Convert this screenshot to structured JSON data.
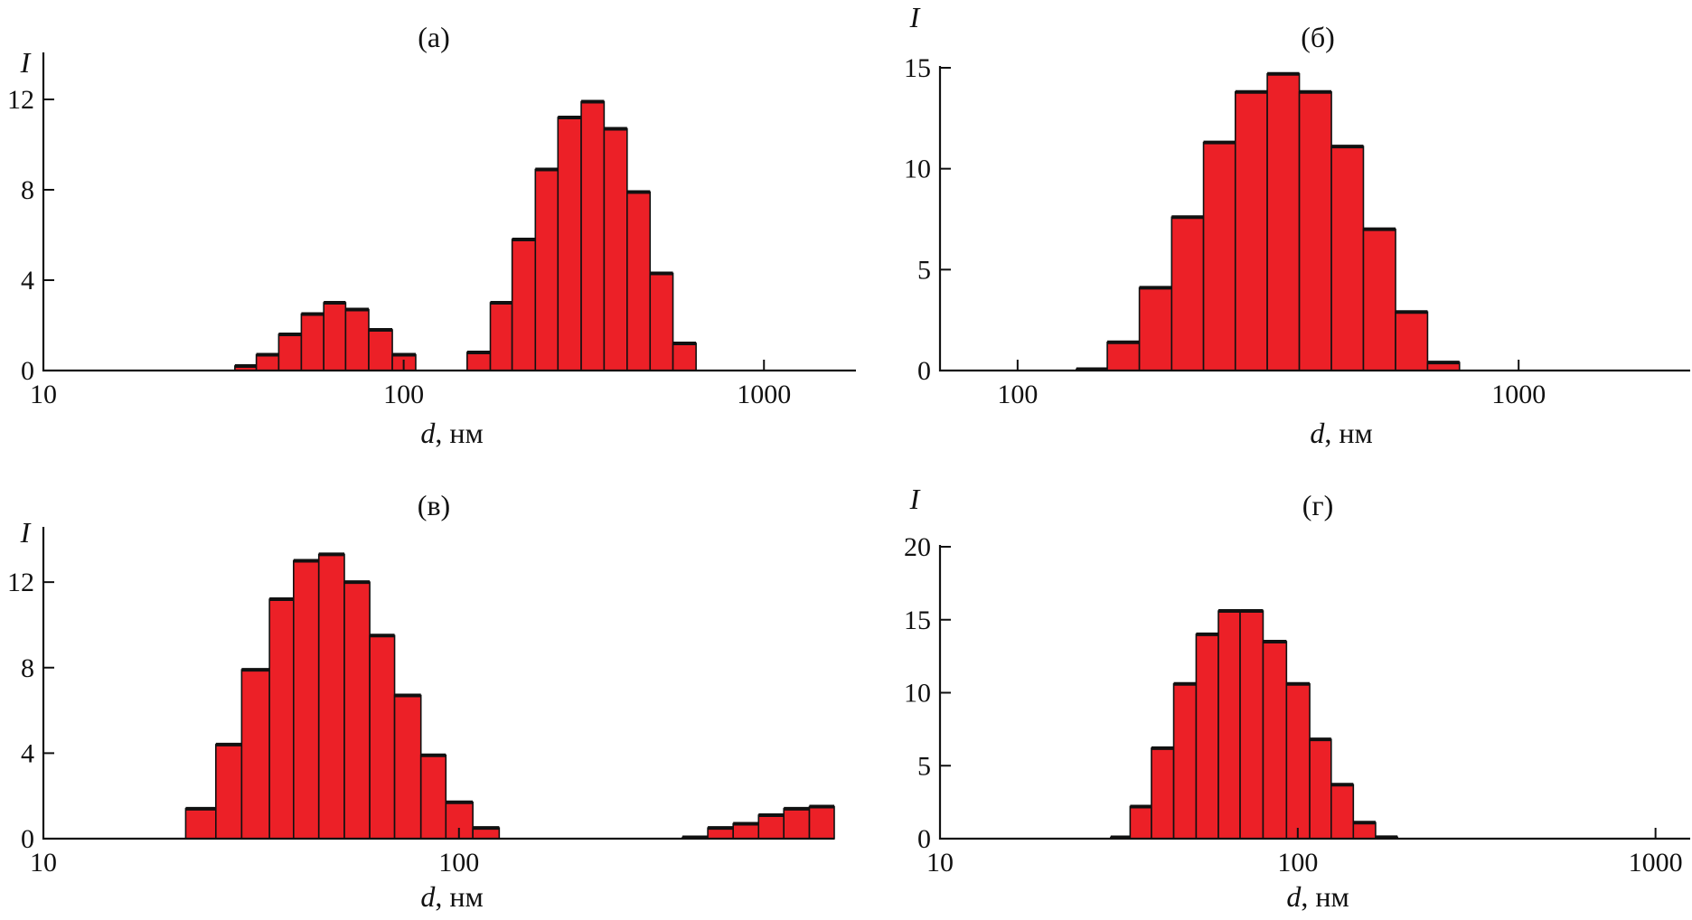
{
  "colors": {
    "bar_fill": "#ec2027",
    "bar_edge": "#111111",
    "axis": "#111111"
  },
  "chart_data": [
    {
      "type": "bar",
      "panel": "(а)",
      "title": "(а)",
      "xlabel": "d",
      "xlabel_unit": ", нм",
      "ylabel": "I",
      "xscale": "log",
      "xlim": [
        10,
        1800
      ],
      "ylim": [
        0,
        14
      ],
      "xticks": [
        10,
        100,
        1000
      ],
      "xtick_labels": [
        "10",
        "100",
        "1000"
      ],
      "yticks": [
        0,
        4,
        8,
        12
      ],
      "ytick_labels": [
        "0",
        "4",
        "8",
        "12"
      ],
      "bins": [
        {
          "x0": 34,
          "x1": 39,
          "value": 0.2
        },
        {
          "x0": 39,
          "x1": 45,
          "value": 0.7
        },
        {
          "x0": 45,
          "x1": 52,
          "value": 1.6
        },
        {
          "x0": 52,
          "x1": 60,
          "value": 2.5
        },
        {
          "x0": 60,
          "x1": 69,
          "value": 3.0
        },
        {
          "x0": 69,
          "x1": 80,
          "value": 2.7
        },
        {
          "x0": 80,
          "x1": 93,
          "value": 1.8
        },
        {
          "x0": 93,
          "x1": 108,
          "value": 0.7
        },
        {
          "x0": 150,
          "x1": 174,
          "value": 0.8
        },
        {
          "x0": 174,
          "x1": 200,
          "value": 3.0
        },
        {
          "x0": 200,
          "x1": 232,
          "value": 5.8
        },
        {
          "x0": 232,
          "x1": 268,
          "value": 8.9
        },
        {
          "x0": 268,
          "x1": 311,
          "value": 11.2
        },
        {
          "x0": 311,
          "x1": 360,
          "value": 11.9
        },
        {
          "x0": 360,
          "x1": 417,
          "value": 10.7
        },
        {
          "x0": 417,
          "x1": 483,
          "value": 7.9
        },
        {
          "x0": 483,
          "x1": 559,
          "value": 4.3
        },
        {
          "x0": 559,
          "x1": 648,
          "value": 1.2
        }
      ]
    },
    {
      "type": "bar",
      "panel": "(б)",
      "title": "(б)",
      "xlabel": "d",
      "xlabel_unit": ", нм",
      "ylabel": "I",
      "xscale": "log",
      "xlim": [
        70,
        2200
      ],
      "ylim": [
        0,
        15
      ],
      "xticks": [
        100,
        1000
      ],
      "xtick_labels": [
        "100",
        "1000"
      ],
      "yticks": [
        0,
        5,
        10,
        15
      ],
      "ytick_labels": [
        "0",
        "5",
        "10",
        "15"
      ],
      "bins": [
        {
          "x0": 131,
          "x1": 151,
          "value": 0.05
        },
        {
          "x0": 151,
          "x1": 175,
          "value": 1.4
        },
        {
          "x0": 175,
          "x1": 203,
          "value": 4.1
        },
        {
          "x0": 203,
          "x1": 235,
          "value": 7.6
        },
        {
          "x0": 235,
          "x1": 272,
          "value": 11.3
        },
        {
          "x0": 272,
          "x1": 315,
          "value": 13.8
        },
        {
          "x0": 315,
          "x1": 365,
          "value": 14.7
        },
        {
          "x0": 365,
          "x1": 423,
          "value": 13.8
        },
        {
          "x0": 423,
          "x1": 490,
          "value": 11.1
        },
        {
          "x0": 490,
          "x1": 568,
          "value": 7.0
        },
        {
          "x0": 568,
          "x1": 658,
          "value": 2.9
        },
        {
          "x0": 658,
          "x1": 762,
          "value": 0.4
        }
      ]
    },
    {
      "type": "bar",
      "panel": "(в)",
      "title": "(в)",
      "xlabel": "d",
      "xlabel_unit": ", нм",
      "ylabel": "I",
      "xscale": "log",
      "xlim": [
        10,
        800
      ],
      "ylim": [
        0,
        14.5
      ],
      "xticks": [
        10,
        100
      ],
      "xtick_labels": [
        "10",
        "100"
      ],
      "yticks": [
        0,
        4,
        8,
        12
      ],
      "ytick_labels": [
        "0",
        "4",
        "8",
        "12"
      ],
      "bins": [
        {
          "x0": 22,
          "x1": 26,
          "value": 1.4
        },
        {
          "x0": 26,
          "x1": 30,
          "value": 4.4
        },
        {
          "x0": 30,
          "x1": 35,
          "value": 7.9
        },
        {
          "x0": 35,
          "x1": 40,
          "value": 11.2
        },
        {
          "x0": 40,
          "x1": 46,
          "value": 13.0
        },
        {
          "x0": 46,
          "x1": 53,
          "value": 13.3
        },
        {
          "x0": 53,
          "x1": 61,
          "value": 12.0
        },
        {
          "x0": 61,
          "x1": 70,
          "value": 9.5
        },
        {
          "x0": 70,
          "x1": 81,
          "value": 6.7
        },
        {
          "x0": 81,
          "x1": 93,
          "value": 3.9
        },
        {
          "x0": 93,
          "x1": 108,
          "value": 1.7
        },
        {
          "x0": 108,
          "x1": 125,
          "value": 0.5
        },
        {
          "x0": 345,
          "x1": 397,
          "value": 0.05
        },
        {
          "x0": 397,
          "x1": 457,
          "value": 0.5
        },
        {
          "x0": 457,
          "x1": 526,
          "value": 0.7
        },
        {
          "x0": 526,
          "x1": 605,
          "value": 1.1
        },
        {
          "x0": 605,
          "x1": 697,
          "value": 1.4
        },
        {
          "x0": 697,
          "x1": 800,
          "value": 1.5
        }
      ]
    },
    {
      "type": "bar",
      "panel": "(г)",
      "title": "(г)",
      "xlabel": "d",
      "xlabel_unit": ", нм",
      "ylabel": "I",
      "xscale": "log",
      "xlim": [
        10,
        1250
      ],
      "ylim": [
        0,
        20
      ],
      "xticks": [
        10,
        100,
        1000
      ],
      "xtick_labels": [
        "10",
        "100",
        "1000"
      ],
      "yticks": [
        0,
        5,
        10,
        15,
        20
      ],
      "ytick_labels": [
        "0",
        "5",
        "10",
        "15",
        "20"
      ],
      "bins": [
        {
          "x0": 30,
          "x1": 34,
          "value": 0.05
        },
        {
          "x0": 34,
          "x1": 39,
          "value": 2.2
        },
        {
          "x0": 39,
          "x1": 45,
          "value": 6.2
        },
        {
          "x0": 45,
          "x1": 52,
          "value": 10.6
        },
        {
          "x0": 52,
          "x1": 60,
          "value": 14.0
        },
        {
          "x0": 60,
          "x1": 69,
          "value": 15.6
        },
        {
          "x0": 69,
          "x1": 80,
          "value": 15.6
        },
        {
          "x0": 80,
          "x1": 93,
          "value": 13.5
        },
        {
          "x0": 93,
          "x1": 108,
          "value": 10.6
        },
        {
          "x0": 108,
          "x1": 124,
          "value": 6.8
        },
        {
          "x0": 124,
          "x1": 143,
          "value": 3.7
        },
        {
          "x0": 143,
          "x1": 165,
          "value": 1.1
        },
        {
          "x0": 165,
          "x1": 190,
          "value": 0.1
        }
      ]
    }
  ]
}
